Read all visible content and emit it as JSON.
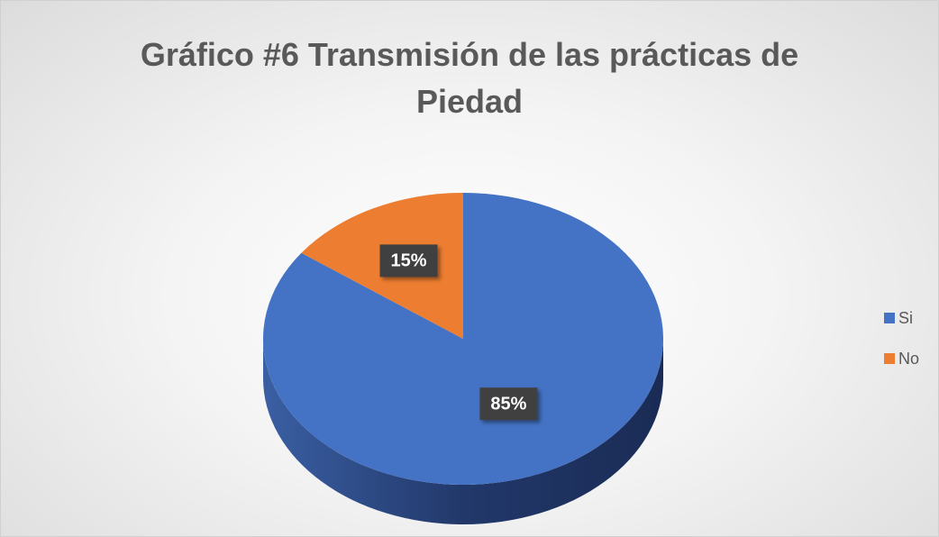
{
  "chart_data": {
    "type": "pie",
    "title": "Gráfico #6 Transmisión de las prácticas de Piedad",
    "categories": [
      "Si",
      "No"
    ],
    "values": [
      85,
      15
    ],
    "value_labels": [
      "85%",
      "15%"
    ],
    "colors": [
      "#4472c4",
      "#ed7d31"
    ],
    "legend": "right"
  }
}
